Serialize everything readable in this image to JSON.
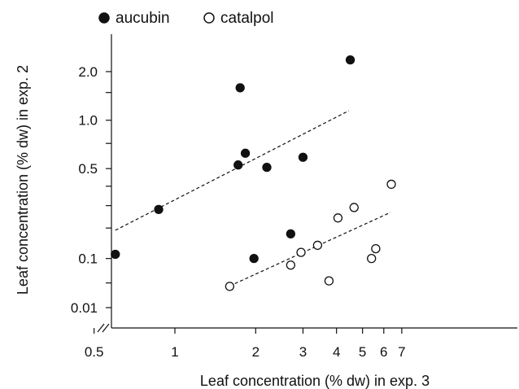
{
  "chart_data": {
    "type": "scatter",
    "xlabel": "Leaf concentration (% dw) in exp. 3",
    "ylabel": "Leaf concentration (% dw) in exp. 2",
    "x_scale": "log",
    "y_scale": "broken-log",
    "x_ticks": [
      {
        "value": 0.5,
        "label": "0.5"
      },
      {
        "value": 1,
        "label": "1"
      },
      {
        "value": 2,
        "label": "2"
      },
      {
        "value": 3,
        "label": "3"
      },
      {
        "value": 4,
        "label": "4"
      },
      {
        "value": 5,
        "label": "5"
      },
      {
        "value": 6,
        "label": "6"
      },
      {
        "value": 7,
        "label": "7"
      }
    ],
    "y_ticks": [
      {
        "value": 0.01,
        "label": "0.01"
      },
      {
        "value": 0.05,
        "label": ""
      },
      {
        "value": 0.1,
        "label": "0.1"
      },
      {
        "value": 0.2,
        "label": ""
      },
      {
        "value": 0.3,
        "label": ""
      },
      {
        "value": 0.4,
        "label": ""
      },
      {
        "value": 0.5,
        "label": "0.5"
      },
      {
        "value": 0.75,
        "label": ""
      },
      {
        "value": 1.0,
        "label": "1.0"
      },
      {
        "value": 1.5,
        "label": ""
      },
      {
        "value": 2.0,
        "label": "2.0"
      }
    ],
    "y_tick_positions": [
      [
        0.01,
        0.0
      ],
      [
        0.05,
        0.098
      ],
      [
        0.1,
        0.195
      ],
      [
        0.2,
        0.316
      ],
      [
        0.3,
        0.405
      ],
      [
        0.4,
        0.482
      ],
      [
        0.5,
        0.552
      ],
      [
        0.75,
        0.652
      ],
      [
        1.0,
        0.744
      ],
      [
        1.5,
        0.854
      ],
      [
        2.0,
        0.937
      ]
    ],
    "series": [
      {
        "name": "aucubin",
        "marker": "filled-circle",
        "points": [
          [
            0.6,
            0.11
          ],
          [
            0.87,
            0.28
          ],
          [
            1.72,
            0.53
          ],
          [
            1.75,
            1.6
          ],
          [
            1.83,
            0.64
          ],
          [
            1.97,
            0.1
          ],
          [
            2.2,
            0.51
          ],
          [
            2.7,
            0.175
          ],
          [
            3.0,
            0.6
          ],
          [
            4.5,
            2.35
          ]
        ],
        "trend": [
          [
            0.6,
            0.19
          ],
          [
            4.45,
            1.15
          ]
        ]
      },
      {
        "name": "catalpol",
        "marker": "open-circle",
        "points": [
          [
            1.6,
            0.04
          ],
          [
            2.7,
            0.083
          ],
          [
            2.95,
            0.115
          ],
          [
            3.4,
            0.135
          ],
          [
            3.75,
            0.053
          ],
          [
            4.05,
            0.24
          ],
          [
            4.65,
            0.29
          ],
          [
            5.4,
            0.1
          ],
          [
            5.6,
            0.125
          ],
          [
            6.4,
            0.41
          ]
        ],
        "trend": [
          [
            1.6,
            0.041
          ],
          [
            6.35,
            0.265
          ]
        ]
      }
    ],
    "legend": {
      "position": "top-left",
      "entries": [
        "aucubin",
        "catalpol"
      ]
    },
    "axis_break": "x-origin",
    "grid": false
  }
}
